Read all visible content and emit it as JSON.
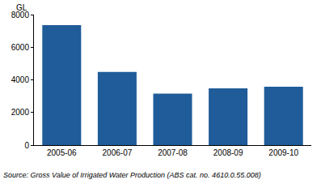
{
  "chart_data": {
    "type": "bar",
    "ylabel": "GL",
    "categories": [
      "2005-06",
      "2006-07",
      "2007-08",
      "2008-09",
      "2009-10"
    ],
    "values": [
      7350,
      4480,
      3150,
      3480,
      3580
    ],
    "color": "#1f5c99",
    "ylim": [
      0,
      8000
    ],
    "yticks": [
      0,
      2000,
      4000,
      6000,
      8000
    ],
    "grid": true,
    "source": "Source: Gross Value of Irrigated Water Production (ABS cat. no. 4610.0.55.008)"
  }
}
